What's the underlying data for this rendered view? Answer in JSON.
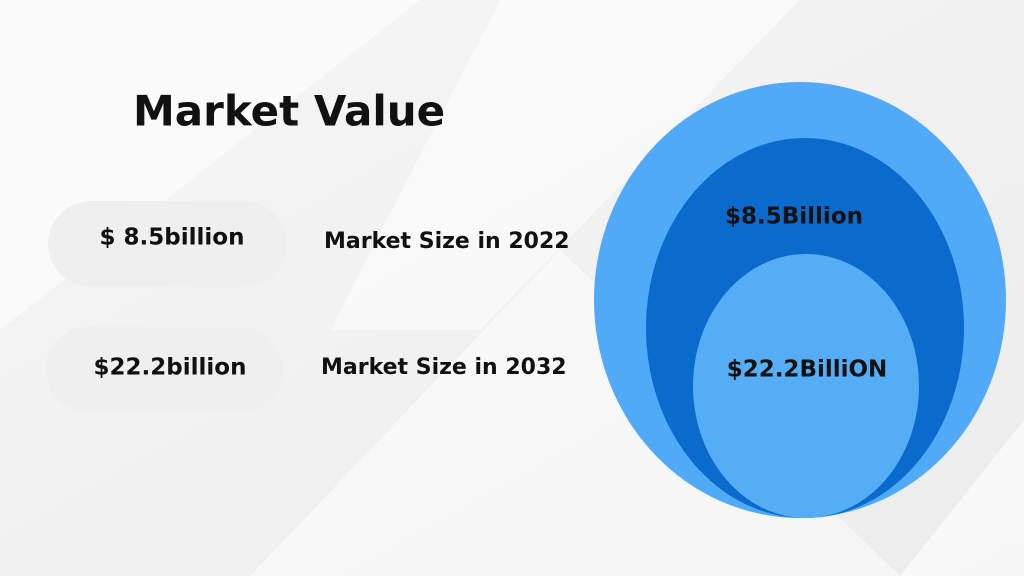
{
  "title": "Market Value",
  "items": [
    {
      "value": "$ 8.5billion",
      "label": "Market Size in 2022"
    },
    {
      "value": "$22.2billion",
      "label": "Market Size in 2032"
    }
  ],
  "circles": {
    "middle_label": "$8.5Billion",
    "inner_label": "$22.2BilliON"
  }
}
